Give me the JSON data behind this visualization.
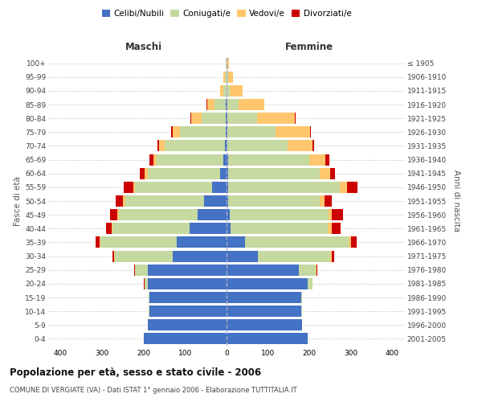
{
  "age_groups": [
    "0-4",
    "5-9",
    "10-14",
    "15-19",
    "20-24",
    "25-29",
    "30-34",
    "35-39",
    "40-44",
    "45-49",
    "50-54",
    "55-59",
    "60-64",
    "65-69",
    "70-74",
    "75-79",
    "80-84",
    "85-89",
    "90-94",
    "95-99",
    "100+"
  ],
  "birth_years": [
    "2001-2005",
    "1996-2000",
    "1991-1995",
    "1986-1990",
    "1981-1985",
    "1976-1980",
    "1971-1975",
    "1966-1970",
    "1961-1965",
    "1956-1960",
    "1951-1955",
    "1946-1950",
    "1941-1945",
    "1936-1940",
    "1931-1935",
    "1926-1930",
    "1921-1925",
    "1916-1920",
    "1911-1915",
    "1906-1910",
    "≤ 1905"
  ],
  "colors": {
    "celibi": "#4472C4",
    "coniugati": "#c5d9a0",
    "vedovi": "#ffc66d",
    "divorziati": "#cc0000"
  },
  "maschi": {
    "celibi": [
      200,
      190,
      185,
      185,
      190,
      190,
      130,
      120,
      90,
      70,
      55,
      35,
      15,
      8,
      4,
      2,
      1,
      1,
      0,
      0,
      0
    ],
    "coniugati": [
      0,
      0,
      3,
      3,
      8,
      30,
      140,
      185,
      185,
      190,
      190,
      185,
      175,
      160,
      145,
      110,
      60,
      28,
      8,
      4,
      1
    ],
    "vedovi": [
      0,
      0,
      0,
      0,
      0,
      1,
      2,
      2,
      2,
      3,
      5,
      5,
      7,
      9,
      14,
      18,
      25,
      18,
      8,
      4,
      1
    ],
    "divorziati": [
      0,
      0,
      0,
      0,
      1,
      2,
      4,
      8,
      14,
      18,
      18,
      22,
      12,
      8,
      4,
      4,
      2,
      1,
      0,
      0,
      0
    ]
  },
  "femmine": {
    "celibi": [
      195,
      182,
      180,
      180,
      195,
      175,
      75,
      45,
      10,
      8,
      4,
      4,
      4,
      4,
      2,
      1,
      1,
      1,
      0,
      0,
      0
    ],
    "coniugati": [
      0,
      0,
      3,
      3,
      12,
      40,
      175,
      250,
      235,
      238,
      220,
      270,
      220,
      195,
      145,
      118,
      72,
      28,
      8,
      4,
      1
    ],
    "vedovi": [
      0,
      0,
      0,
      0,
      0,
      1,
      4,
      6,
      8,
      8,
      12,
      16,
      25,
      40,
      60,
      82,
      92,
      62,
      30,
      12,
      4
    ],
    "divorziati": [
      0,
      0,
      0,
      0,
      1,
      2,
      6,
      12,
      22,
      26,
      18,
      26,
      12,
      8,
      4,
      2,
      1,
      1,
      0,
      0,
      0
    ]
  },
  "title": "Popolazione per età, sesso e stato civile - 2006",
  "subtitle": "COMUNE DI VERGIATE (VA) - Dati ISTAT 1° gennaio 2006 - Elaborazione TUTTITALIA.IT",
  "xlabel_left": "Maschi",
  "xlabel_right": "Femmine",
  "ylabel_left": "Fasce di età",
  "ylabel_right": "Anni di nascita",
  "xlim": 430,
  "legend_labels": [
    "Celibi/Nubili",
    "Coniugati/e",
    "Vedovi/e",
    "Divorziati/e"
  ],
  "bg_color": "#ffffff",
  "grid_color": "#cccccc",
  "bar_height": 0.82
}
